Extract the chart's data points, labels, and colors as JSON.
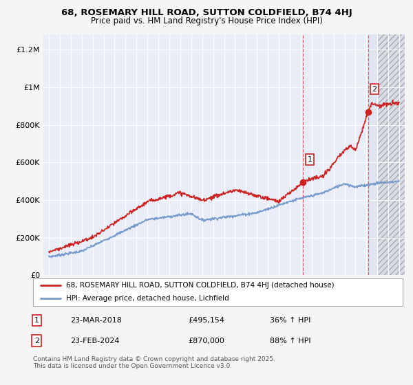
{
  "title": "68, ROSEMARY HILL ROAD, SUTTON COLDFIELD, B74 4HJ",
  "subtitle": "Price paid vs. HM Land Registry's House Price Index (HPI)",
  "ylabel_ticks": [
    "£0",
    "£200K",
    "£400K",
    "£600K",
    "£800K",
    "£1M",
    "£1.2M"
  ],
  "ytick_values": [
    0,
    200000,
    400000,
    600000,
    800000,
    1000000,
    1200000
  ],
  "ylim": [
    0,
    1280000
  ],
  "xlim_start": 1994.5,
  "xlim_end": 2027.5,
  "marker1_x": 2018.22,
  "marker2_x": 2024.14,
  "marker1_y": 495154,
  "marker2_y": 870000,
  "marker1_label": "1",
  "marker2_label": "2",
  "hatch_start": 2025.0,
  "legend_line1": "68, ROSEMARY HILL ROAD, SUTTON COLDFIELD, B74 4HJ (detached house)",
  "legend_line2": "HPI: Average price, detached house, Lichfield",
  "table_row1": [
    "1",
    "23-MAR-2018",
    "£495,154",
    "36% ↑ HPI"
  ],
  "table_row2": [
    "2",
    "23-FEB-2024",
    "£870,000",
    "88% ↑ HPI"
  ],
  "footer": "Contains HM Land Registry data © Crown copyright and database right 2025.\nThis data is licensed under the Open Government Licence v3.0.",
  "line1_color": "#cc2222",
  "line2_color": "#7799cc",
  "bg_color": "#f5f5f5",
  "plot_bg": "#e8edf8",
  "vline_color": "#dd4444",
  "grid_color": "#ffffff"
}
